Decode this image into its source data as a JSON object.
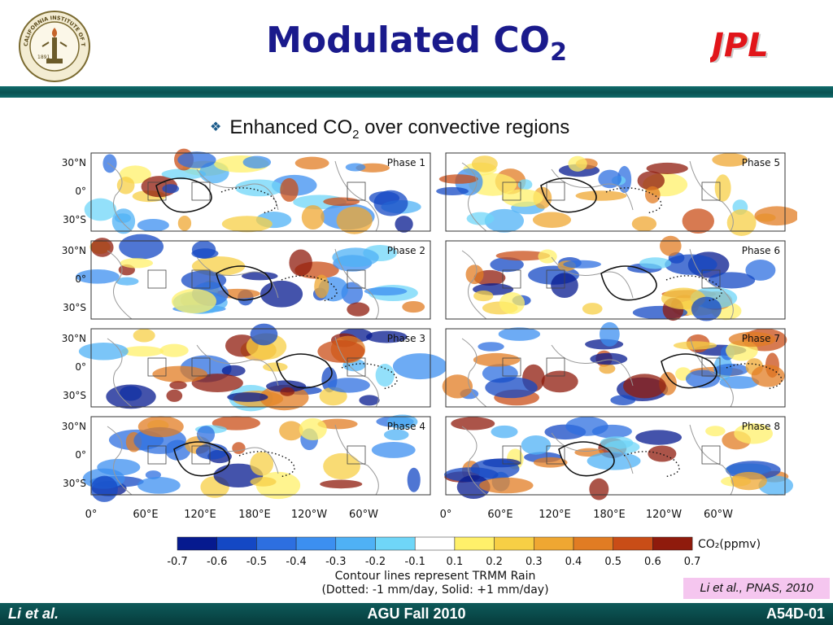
{
  "header": {
    "title_main": "Modulated CO",
    "title_sub": "2",
    "logo_left": "CALIFORNIA INSTITUTE OF TECHNOLOGY",
    "logo_left_year": "1891",
    "logo_right": "JPL"
  },
  "bullet": {
    "text_pre": "Enhanced CO",
    "text_sub": "2",
    "text_post": " over convective regions"
  },
  "chart_data": {
    "type": "heatmap",
    "panels": [
      {
        "label": "Phase 1"
      },
      {
        "label": "Phase 5"
      },
      {
        "label": "Phase 2"
      },
      {
        "label": "Phase 6"
      },
      {
        "label": "Phase 3"
      },
      {
        "label": "Phase 7"
      },
      {
        "label": "Phase 4"
      },
      {
        "label": "Phase 8"
      }
    ],
    "y_ticks": [
      "30°N",
      "0°",
      "30°S"
    ],
    "x_ticks": [
      "0°",
      "60°E",
      "120°E",
      "180°E",
      "120°W",
      "60°W"
    ],
    "colorbar": {
      "label": "CO₂(ppmv)",
      "ticks": [
        "-0.7",
        "-0.6",
        "-0.5",
        "-0.4",
        "-0.3",
        "-0.2",
        "-0.1",
        "0.1",
        "0.2",
        "0.3",
        "0.4",
        "0.5",
        "0.6",
        "0.7"
      ],
      "colors": [
        "#061a8f",
        "#1448c4",
        "#2d6fe0",
        "#3c8ff0",
        "#4fb1f5",
        "#6fd6f8",
        "#ffffff",
        "#fff06a",
        "#f7cf45",
        "#efa732",
        "#e17c23",
        "#c94d17",
        "#8f1b0c"
      ]
    },
    "notes": [
      "Contour lines represent TRMM Rain",
      "(Dotted: -1 mm/day, Solid: +1 mm/day)"
    ]
  },
  "citation": "Li et al., PNAS, 2010",
  "footer": {
    "left": "Li et al.",
    "center": "AGU Fall 2010",
    "right": "A54D-01"
  }
}
